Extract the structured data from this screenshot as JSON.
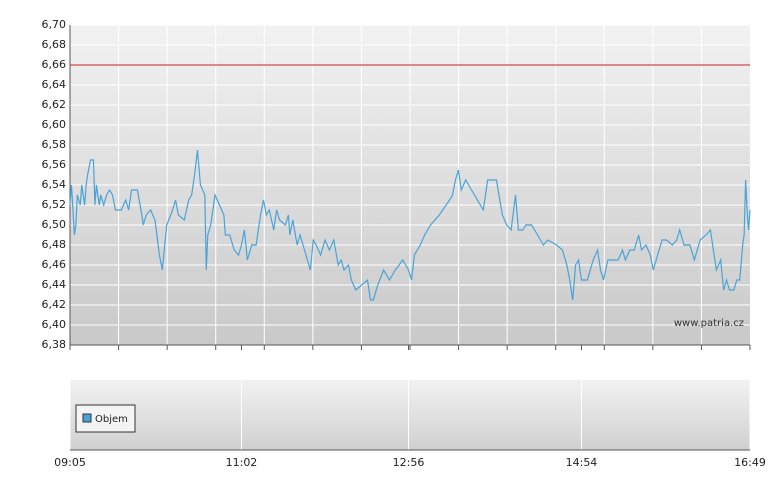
{
  "chart_data": {
    "type": "line",
    "x": [
      545,
      546,
      548,
      549,
      550,
      552,
      553,
      555,
      556,
      557,
      559,
      561,
      562,
      563,
      565,
      566,
      568,
      570,
      572,
      574,
      576,
      580,
      583,
      585,
      587,
      591,
      594,
      595,
      597,
      600,
      603,
      606,
      608,
      611,
      615,
      617,
      619,
      623,
      626,
      628,
      630,
      632,
      634,
      637,
      638,
      639,
      641,
      643,
      644,
      647,
      650,
      651,
      654,
      657,
      660,
      662,
      664,
      666,
      669,
      672,
      675,
      677,
      679,
      681,
      684,
      686,
      688,
      692,
      694,
      695,
      697,
      700,
      702,
      705,
      709,
      711,
      713,
      716,
      719,
      722,
      725,
      728,
      730,
      732,
      735,
      737,
      740,
      744,
      748,
      750,
      752,
      755,
      759,
      763,
      767,
      772,
      776,
      778,
      780,
      784,
      787,
      791,
      797,
      804,
      806,
      808,
      810,
      812,
      815,
      819,
      823,
      827,
      830,
      836,
      840,
      843,
      846,
      849,
      851,
      854,
      856,
      860,
      864,
      868,
      871,
      877,
      881,
      884,
      886,
      888,
      890,
      892,
      894,
      898,
      902,
      905,
      907,
      909,
      912,
      915,
      919,
      922,
      924,
      927,
      930,
      933,
      935,
      938,
      941,
      943,
      946,
      949,
      952,
      956,
      959,
      961,
      964,
      968,
      971,
      975,
      979,
      982,
      984,
      986,
      989,
      991,
      993,
      995,
      998,
      1000,
      1002,
      1004,
      1005,
      1006,
      1007,
      1008,
      1009
    ],
    "values": [
      6.52,
      6.54,
      6.49,
      6.5,
      6.53,
      6.52,
      6.54,
      6.52,
      6.54,
      6.55,
      6.565,
      6.565,
      6.52,
      6.54,
      6.52,
      6.53,
      6.52,
      6.53,
      6.535,
      6.53,
      6.515,
      6.515,
      6.525,
      6.515,
      6.535,
      6.535,
      6.51,
      6.5,
      6.51,
      6.515,
      6.505,
      6.47,
      6.455,
      6.5,
      6.515,
      6.525,
      6.51,
      6.505,
      6.525,
      6.53,
      6.55,
      6.575,
      6.54,
      6.53,
      6.455,
      6.49,
      6.5,
      6.52,
      6.53,
      6.52,
      6.51,
      6.49,
      6.49,
      6.475,
      6.47,
      6.48,
      6.495,
      6.465,
      6.48,
      6.48,
      6.51,
      6.525,
      6.51,
      6.515,
      6.495,
      6.515,
      6.505,
      6.5,
      6.51,
      6.49,
      6.505,
      6.48,
      6.49,
      6.475,
      6.455,
      6.485,
      6.48,
      6.47,
      6.485,
      6.475,
      6.485,
      6.46,
      6.465,
      6.455,
      6.46,
      6.445,
      6.435,
      6.44,
      6.445,
      6.425,
      6.425,
      6.44,
      6.455,
      6.445,
      6.455,
      6.465,
      6.455,
      6.445,
      6.47,
      6.48,
      6.49,
      6.5,
      6.51,
      6.525,
      6.53,
      6.545,
      6.555,
      6.535,
      6.545,
      6.535,
      6.525,
      6.515,
      6.545,
      6.545,
      6.51,
      6.5,
      6.495,
      6.53,
      6.495,
      6.495,
      6.5,
      6.5,
      6.49,
      6.48,
      6.485,
      6.48,
      6.475,
      6.46,
      6.445,
      6.425,
      6.46,
      6.465,
      6.445,
      6.445,
      6.465,
      6.475,
      6.455,
      6.445,
      6.465,
      6.465,
      6.465,
      6.475,
      6.465,
      6.475,
      6.475,
      6.49,
      6.475,
      6.48,
      6.47,
      6.455,
      6.47,
      6.485,
      6.485,
      6.48,
      6.485,
      6.495,
      6.48,
      6.48,
      6.465,
      6.485,
      6.49,
      6.495,
      6.475,
      6.455,
      6.465,
      6.435,
      6.445,
      6.435,
      6.435,
      6.445,
      6.445,
      6.48,
      6.49,
      6.545,
      6.515,
      6.495,
      6.515
    ],
    "color": "#4aa3d8",
    "xlim": [
      545,
      1009
    ],
    "xticks": [
      {
        "value": 545,
        "label": "09:05"
      },
      {
        "value": 662,
        "label": "11:02"
      },
      {
        "value": 776,
        "label": "12:56"
      },
      {
        "value": 894,
        "label": "14:54"
      },
      {
        "value": 1009,
        "label": "16:49"
      }
    ],
    "ylim": [
      6.38,
      6.7
    ],
    "yticks": [
      {
        "value": 6.38,
        "label": "6,38"
      },
      {
        "value": 6.4,
        "label": "6,40"
      },
      {
        "value": 6.42,
        "label": "6,42"
      },
      {
        "value": 6.44,
        "label": "6,44"
      },
      {
        "value": 6.46,
        "label": "6,46"
      },
      {
        "value": 6.48,
        "label": "6,48"
      },
      {
        "value": 6.5,
        "label": "6,50"
      },
      {
        "value": 6.52,
        "label": "6,52"
      },
      {
        "value": 6.54,
        "label": "6,54"
      },
      {
        "value": 6.56,
        "label": "6,56"
      },
      {
        "value": 6.58,
        "label": "6,58"
      },
      {
        "value": 6.6,
        "label": "6,60"
      },
      {
        "value": 6.62,
        "label": "6,62"
      },
      {
        "value": 6.64,
        "label": "6,64"
      },
      {
        "value": 6.66,
        "label": "6,66"
      },
      {
        "value": 6.68,
        "label": "6,68"
      },
      {
        "value": 6.7,
        "label": "6,70"
      }
    ],
    "reference_line": {
      "value": 6.66,
      "color": "#cc2222"
    },
    "watermark": "www.patria.cz",
    "volume": {
      "name": "Objem",
      "color": "#4aa3d8"
    },
    "grid": true
  }
}
